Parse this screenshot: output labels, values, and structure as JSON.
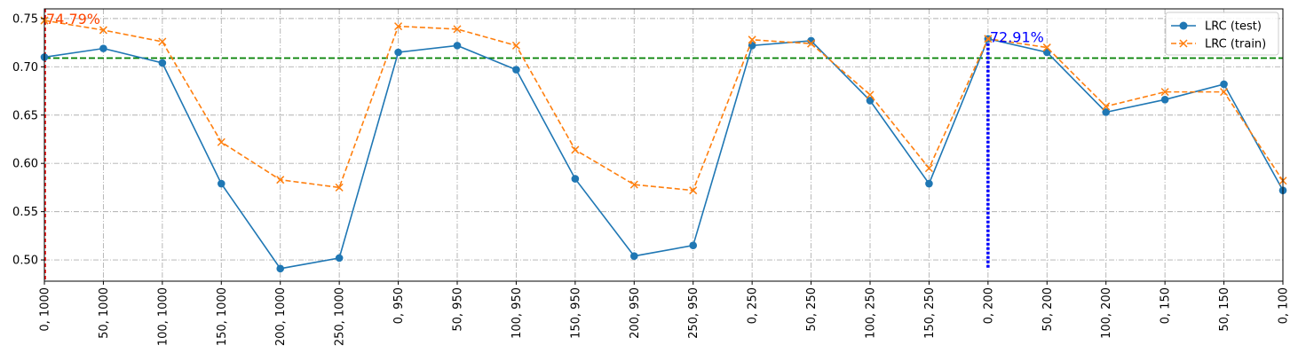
{
  "chart_data": {
    "type": "line",
    "categories": [
      "0, 1000",
      "50, 1000",
      "100, 1000",
      "150, 1000",
      "200, 1000",
      "250, 1000",
      "0, 950",
      "50, 950",
      "100, 950",
      "150, 950",
      "200, 950",
      "250, 950",
      "0, 250",
      "50, 250",
      "100, 250",
      "150, 250",
      "0, 200",
      "50, 200",
      "100, 200",
      "0, 150",
      "50, 150",
      "0, 100"
    ],
    "series": [
      {
        "name": "LRC (test)",
        "color": "#1f77b4",
        "marker": "circle",
        "line_style": "solid",
        "values": [
          0.71,
          0.719,
          0.704,
          0.579,
          0.491,
          0.502,
          0.715,
          0.722,
          0.697,
          0.584,
          0.504,
          0.515,
          0.722,
          0.727,
          0.665,
          0.579,
          0.729,
          0.715,
          0.653,
          0.666,
          0.682,
          0.572
        ]
      },
      {
        "name": "LRC (train)",
        "color": "#ff7f0e",
        "marker": "x",
        "line_style": "dashed",
        "values": [
          0.748,
          0.738,
          0.726,
          0.622,
          0.583,
          0.575,
          0.742,
          0.739,
          0.722,
          0.614,
          0.578,
          0.572,
          0.728,
          0.724,
          0.671,
          0.595,
          0.729,
          0.72,
          0.659,
          0.674,
          0.674,
          0.582
        ]
      }
    ],
    "ylim": [
      0.478,
      0.76
    ],
    "yticks": [
      0.5,
      0.55,
      0.6,
      0.65,
      0.7,
      0.75
    ],
    "ytick_labels": [
      "0.50",
      "0.55",
      "0.60",
      "0.65",
      "0.70",
      "0.75"
    ],
    "grid": true,
    "legend_position": "upper-right",
    "reference_lines": {
      "horizontal": {
        "y": 0.709,
        "color": "#008000",
        "style": "dashed"
      },
      "vertical_red": {
        "category_index": 0,
        "color": "#ff0000",
        "style": "dashed"
      },
      "vertical_blue": {
        "category_index": 16,
        "y_top": 0.729,
        "color": "#0000ff",
        "style": "dotted"
      }
    },
    "annotations": [
      {
        "text": "74.79%",
        "category_index": 0,
        "y": 0.748,
        "color": "#ff4500"
      },
      {
        "text": "72.91%",
        "category_index": 16,
        "y": 0.729,
        "color": "#0000ff"
      }
    ]
  }
}
